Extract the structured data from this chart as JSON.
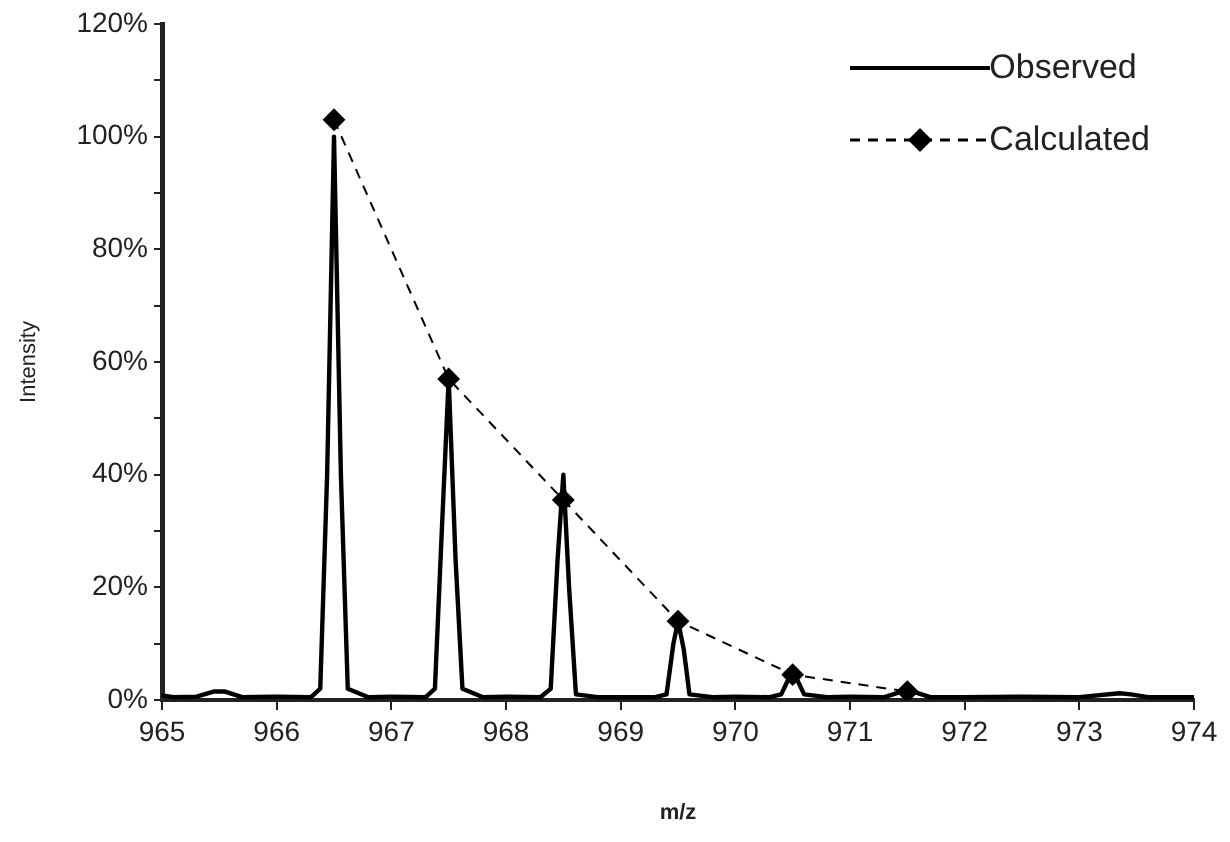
{
  "chart_data": {
    "type": "line",
    "xlabel": "m/z",
    "ylabel": "Intensity",
    "xlim": [
      965,
      974
    ],
    "xticks": [
      965,
      966,
      967,
      968,
      969,
      970,
      971,
      972,
      973,
      974
    ],
    "ylim": [
      0,
      120
    ],
    "yticks": [
      {
        "value": 0,
        "label": "0%"
      },
      {
        "value": 10,
        "label": null
      },
      {
        "value": 20,
        "label": "20%"
      },
      {
        "value": 30,
        "label": null
      },
      {
        "value": 40,
        "label": "40%"
      },
      {
        "value": 50,
        "label": null
      },
      {
        "value": 60,
        "label": "60%"
      },
      {
        "value": 70,
        "label": null
      },
      {
        "value": 80,
        "label": "80%"
      },
      {
        "value": 90,
        "label": null
      },
      {
        "value": 100,
        "label": "100%"
      },
      {
        "value": 110,
        "label": null
      },
      {
        "value": 120,
        "label": "120%"
      }
    ],
    "grid": false,
    "legend": "top right",
    "series": [
      {
        "name": "Observed",
        "color": "#000000",
        "marker": "none",
        "line_style": "solid",
        "x": [
          965.0,
          965.1,
          965.3,
          965.45,
          965.55,
          965.7,
          966.0,
          966.3,
          966.38,
          966.44,
          966.5,
          966.56,
          966.62,
          966.8,
          967.0,
          967.3,
          967.38,
          967.44,
          967.5,
          967.56,
          967.62,
          967.8,
          968.0,
          968.3,
          968.39,
          968.45,
          968.5,
          968.55,
          968.61,
          968.8,
          969.0,
          969.3,
          969.4,
          969.46,
          969.5,
          969.55,
          969.6,
          969.8,
          970.0,
          970.3,
          970.4,
          970.47,
          970.53,
          970.6,
          970.8,
          971.0,
          971.3,
          971.45,
          971.55,
          971.7,
          972.0,
          972.5,
          973.0,
          973.35,
          973.45,
          973.6,
          974.0
        ],
        "values": [
          0.8,
          0.5,
          0.6,
          1.5,
          1.5,
          0.5,
          0.6,
          0.5,
          2,
          40,
          100,
          40,
          2,
          0.5,
          0.6,
          0.5,
          2,
          30,
          57,
          25,
          2,
          0.5,
          0.6,
          0.5,
          2,
          25,
          40,
          20,
          1,
          0.5,
          0.5,
          0.5,
          1,
          10,
          14,
          9,
          1,
          0.5,
          0.6,
          0.5,
          1,
          4,
          4,
          1,
          0.5,
          0.6,
          0.5,
          1.5,
          1.5,
          0.5,
          0.5,
          0.6,
          0.5,
          1.2,
          1,
          0.5,
          0.5
        ]
      },
      {
        "name": "Calculated",
        "color": "#000000",
        "marker": "diamond",
        "line_style": "dashed",
        "x": [
          966.5,
          967.5,
          968.5,
          969.5,
          970.5,
          971.5
        ],
        "values": [
          103,
          57,
          35.5,
          14,
          4.5,
          1.5
        ]
      }
    ]
  }
}
